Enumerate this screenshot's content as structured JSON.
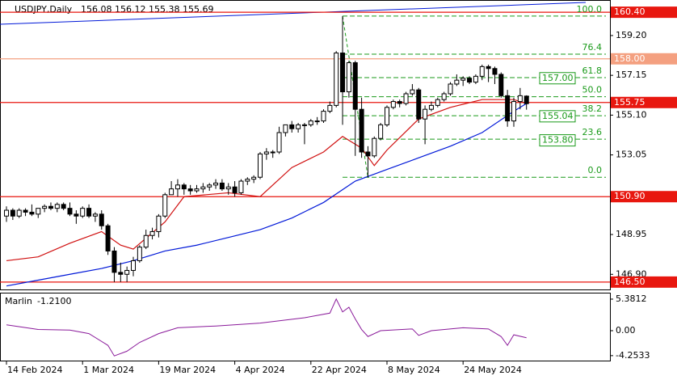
{
  "chart_data": [
    {
      "type": "candlestick",
      "header": {
        "symbol": "USDJPY,Daily",
        "ohlc": [
          156.08,
          156.12,
          155.38,
          155.69
        ]
      },
      "categories": [
        "14 Feb 2024",
        null,
        null,
        null,
        null,
        null,
        null,
        null,
        null,
        null,
        null,
        null,
        "1 Mar 2024",
        null,
        null,
        null,
        null,
        null,
        null,
        null,
        null,
        null,
        null,
        null,
        "19 Mar 2024",
        null,
        null,
        null,
        null,
        null,
        null,
        null,
        null,
        null,
        null,
        null,
        "4 Apr 2024",
        null,
        null,
        null,
        null,
        null,
        null,
        null,
        null,
        null,
        null,
        null,
        "22 Apr 2024",
        null,
        null,
        null,
        null,
        null,
        null,
        null,
        null,
        null,
        null,
        null,
        "8 May 2024",
        null,
        null,
        null,
        null,
        null,
        null,
        null,
        null,
        null,
        null,
        null,
        "24 May 2024",
        null,
        null,
        null,
        null,
        null,
        null,
        null,
        null,
        null,
        null
      ],
      "candles": [
        [
          149.9,
          150.4,
          149.6,
          150.2
        ],
        [
          150.2,
          150.3,
          149.7,
          149.9
        ],
        [
          149.9,
          150.3,
          149.8,
          150.2
        ],
        [
          150.2,
          150.3,
          149.9,
          150.1
        ],
        [
          150.1,
          150.5,
          149.9,
          150.0
        ],
        [
          150.0,
          150.3,
          149.8,
          150.3
        ],
        [
          150.3,
          150.5,
          150.1,
          150.4
        ],
        [
          150.4,
          150.6,
          150.2,
          150.3
        ],
        [
          150.3,
          150.6,
          150.1,
          150.5
        ],
        [
          150.5,
          150.6,
          150.2,
          150.3
        ],
        [
          150.3,
          150.6,
          149.9,
          150.0
        ],
        [
          150.0,
          150.2,
          149.5,
          149.9
        ],
        [
          149.9,
          150.4,
          149.8,
          150.3
        ],
        [
          150.3,
          150.5,
          149.8,
          149.9
        ],
        [
          149.9,
          150.1,
          149.6,
          150.0
        ],
        [
          150.0,
          150.2,
          149.2,
          149.4
        ],
        [
          149.4,
          149.5,
          147.9,
          148.1
        ],
        [
          148.1,
          148.3,
          146.5,
          147.0
        ],
        [
          147.0,
          147.5,
          146.5,
          146.9
        ],
        [
          146.9,
          147.3,
          146.5,
          147.1
        ],
        [
          147.1,
          147.8,
          146.8,
          147.6
        ],
        [
          147.6,
          148.4,
          147.5,
          148.3
        ],
        [
          148.3,
          149.2,
          148.2,
          148.9
        ],
        [
          148.9,
          149.3,
          148.7,
          149.1
        ],
        [
          149.1,
          150.0,
          148.8,
          149.9
        ],
        [
          149.9,
          151.1,
          149.8,
          151.0
        ],
        [
          151.0,
          151.7,
          151.0,
          151.3
        ],
        [
          151.3,
          151.8,
          150.9,
          151.5
        ],
        [
          151.5,
          151.6,
          151.0,
          151.3
        ],
        [
          151.3,
          151.5,
          151.0,
          151.2
        ],
        [
          151.2,
          151.5,
          151.1,
          151.3
        ],
        [
          151.3,
          151.6,
          151.1,
          151.4
        ],
        [
          151.4,
          151.6,
          151.2,
          151.5
        ],
        [
          151.5,
          151.8,
          151.3,
          151.6
        ],
        [
          151.6,
          151.8,
          151.2,
          151.3
        ],
        [
          151.3,
          151.6,
          151.0,
          151.4
        ],
        [
          151.4,
          151.7,
          150.9,
          151.1
        ],
        [
          151.1,
          151.8,
          151.0,
          151.7
        ],
        [
          151.7,
          151.9,
          151.5,
          151.8
        ],
        [
          151.8,
          152.0,
          151.6,
          151.9
        ],
        [
          151.9,
          153.2,
          151.8,
          153.1
        ],
        [
          153.1,
          153.4,
          152.8,
          153.2
        ],
        [
          153.2,
          153.3,
          152.9,
          153.2
        ],
        [
          153.2,
          154.5,
          153.1,
          154.2
        ],
        [
          154.2,
          154.6,
          154.0,
          154.6
        ],
        [
          154.6,
          154.8,
          154.2,
          154.4
        ],
        [
          154.4,
          154.7,
          154.2,
          154.6
        ],
        [
          154.6,
          154.7,
          153.6,
          154.6
        ],
        [
          154.6,
          154.9,
          154.5,
          154.8
        ],
        [
          154.8,
          155.0,
          154.6,
          154.8
        ],
        [
          154.8,
          155.4,
          154.7,
          155.3
        ],
        [
          155.3,
          155.8,
          155.2,
          155.6
        ],
        [
          155.6,
          158.4,
          155.5,
          158.3
        ],
        [
          158.3,
          160.2,
          154.6,
          156.3
        ],
        [
          156.3,
          157.9,
          156.0,
          157.8
        ],
        [
          157.8,
          157.9,
          153.0,
          155.4
        ],
        [
          155.4,
          156.0,
          152.9,
          153.2
        ],
        [
          153.2,
          153.5,
          151.9,
          153.0
        ],
        [
          153.0,
          154.0,
          152.9,
          153.9
        ],
        [
          153.9,
          154.7,
          153.8,
          154.6
        ],
        [
          154.6,
          155.6,
          154.5,
          155.5
        ],
        [
          155.5,
          155.9,
          155.4,
          155.8
        ],
        [
          155.8,
          155.9,
          155.5,
          155.7
        ],
        [
          155.7,
          156.3,
          155.6,
          156.2
        ],
        [
          156.2,
          156.7,
          156.1,
          156.4
        ],
        [
          156.4,
          156.5,
          154.7,
          154.9
        ],
        [
          154.9,
          155.6,
          153.6,
          155.4
        ],
        [
          155.4,
          155.8,
          155.3,
          155.6
        ],
        [
          155.6,
          156.0,
          155.5,
          155.9
        ],
        [
          155.9,
          156.3,
          155.8,
          156.2
        ],
        [
          156.2,
          156.8,
          156.1,
          156.7
        ],
        [
          156.7,
          157.2,
          156.6,
          156.9
        ],
        [
          156.9,
          157.1,
          156.6,
          157.0
        ],
        [
          157.0,
          157.1,
          156.7,
          156.8
        ],
        [
          156.8,
          157.2,
          156.7,
          157.1
        ],
        [
          157.1,
          157.7,
          156.9,
          157.6
        ],
        [
          157.6,
          157.7,
          156.8,
          157.5
        ],
        [
          157.5,
          157.6,
          156.7,
          157.2
        ],
        [
          157.2,
          157.3,
          156.0,
          156.1
        ],
        [
          156.1,
          156.4,
          154.5,
          154.8
        ],
        [
          154.8,
          156.0,
          154.5,
          155.8
        ],
        [
          155.8,
          156.5,
          155.4,
          156.1
        ],
        [
          156.08,
          156.12,
          155.38,
          155.69
        ]
      ],
      "series": [
        {
          "color": "#0018d8",
          "x": [
            0,
            5,
            10,
            15,
            20,
            25,
            30,
            35,
            40,
            45,
            50,
            55,
            60,
            65,
            70,
            75,
            80,
            82
          ],
          "values": [
            146.3,
            146.6,
            146.9,
            147.2,
            147.6,
            148.1,
            148.4,
            148.8,
            149.2,
            149.8,
            150.6,
            151.7,
            152.3,
            152.9,
            153.5,
            154.2,
            155.3,
            155.7
          ]
        },
        {
          "color": "#d01010",
          "x": [
            0,
            5,
            10,
            15,
            18,
            20,
            25,
            28,
            35,
            40,
            45,
            50,
            53,
            56,
            58,
            60,
            65,
            70,
            75,
            80,
            82
          ],
          "values": [
            147.6,
            147.8,
            148.5,
            149.1,
            148.4,
            148.2,
            149.6,
            150.9,
            151.1,
            150.9,
            152.4,
            153.2,
            154.0,
            153.4,
            152.5,
            153.3,
            154.9,
            155.5,
            155.9,
            155.9,
            155.7
          ]
        }
      ],
      "levels": [
        {
          "value": 160.4,
          "label": "160.40",
          "color": "#e8170f"
        },
        {
          "value": 158.0,
          "label": "158.00",
          "color": "#f4a080"
        },
        {
          "value": 155.75,
          "label": "155.75",
          "color": "#e8170f"
        },
        {
          "value": 150.9,
          "label": "150.90",
          "color": "#e8170f"
        },
        {
          "value": 146.5,
          "label": "146.50",
          "color": "#e8170f"
        }
      ],
      "fib": {
        "high": 160.2,
        "low": 151.9,
        "high_index": 53,
        "low_index": 57,
        "color": "#1a9a1a",
        "levels": [
          {
            "value": 100,
            "label": "100.0"
          },
          76.4,
          61.8,
          {
            "value": 50,
            "label": "50.0"
          },
          38.2,
          23.6,
          {
            "value": 0,
            "label": "0.0"
          }
        ],
        "prices": [
          {
            "value": 157,
            "label": "157.00"
          },
          155.04,
          {
            "value": 153.8,
            "label": "153.80"
          }
        ]
      },
      "ylim": [
        146.12,
        161.03
      ],
      "xlim": [
        -1.02,
        95.16
      ],
      "yticks": [
        {
          "value": 159.2,
          "label": "159.20"
        },
        157.15,
        {
          "value": 155.1,
          "label": "155.10"
        },
        153.05,
        148.95,
        {
          "value": 146.9,
          "label": "146.90"
        }
      ]
    },
    {
      "type": "line",
      "title": "Marlin",
      "current": {
        "value": -1.21,
        "label": "-1.2100"
      },
      "color": "#8a1a9a",
      "x": [
        0,
        5,
        10,
        13,
        16,
        17,
        19,
        21,
        24,
        27,
        33,
        40,
        47,
        51,
        52,
        53,
        54,
        55,
        56,
        57,
        59,
        64,
        65,
        67,
        72,
        76,
        78,
        79,
        80,
        82
      ],
      "values": [
        1.0,
        0.2,
        0.1,
        -0.5,
        -2.5,
        -4.3,
        -3.5,
        -2.0,
        -0.5,
        0.5,
        0.8,
        1.3,
        2.2,
        3.0,
        5.4,
        3.2,
        4.0,
        2.0,
        0.2,
        -1.0,
        0.0,
        0.3,
        -0.8,
        0.0,
        0.5,
        0.3,
        -1.0,
        -2.5,
        -0.7,
        -1.21
      ],
      "ylim": [
        -5.1,
        6.48
      ],
      "yticks": [
        5.3812,
        {
          "value": 0,
          "label": "0.00"
        },
        -4.2533
      ]
    }
  ]
}
